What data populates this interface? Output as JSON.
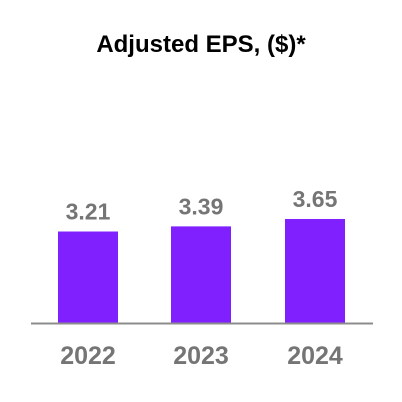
{
  "chart_data": {
    "type": "bar",
    "title": "Adjusted EPS, ($)*",
    "categories": [
      "2022",
      "2023",
      "2024"
    ],
    "values": [
      3.21,
      3.39,
      3.65
    ],
    "value_labels": [
      "3.21",
      "3.39",
      "3.65"
    ],
    "xlabel": "",
    "ylabel": "",
    "grid": false,
    "legend": "none"
  },
  "colors": {
    "bar": "#8020ff",
    "baseline": "#8c8c8c",
    "labels": "#757575",
    "title": "#000000"
  }
}
